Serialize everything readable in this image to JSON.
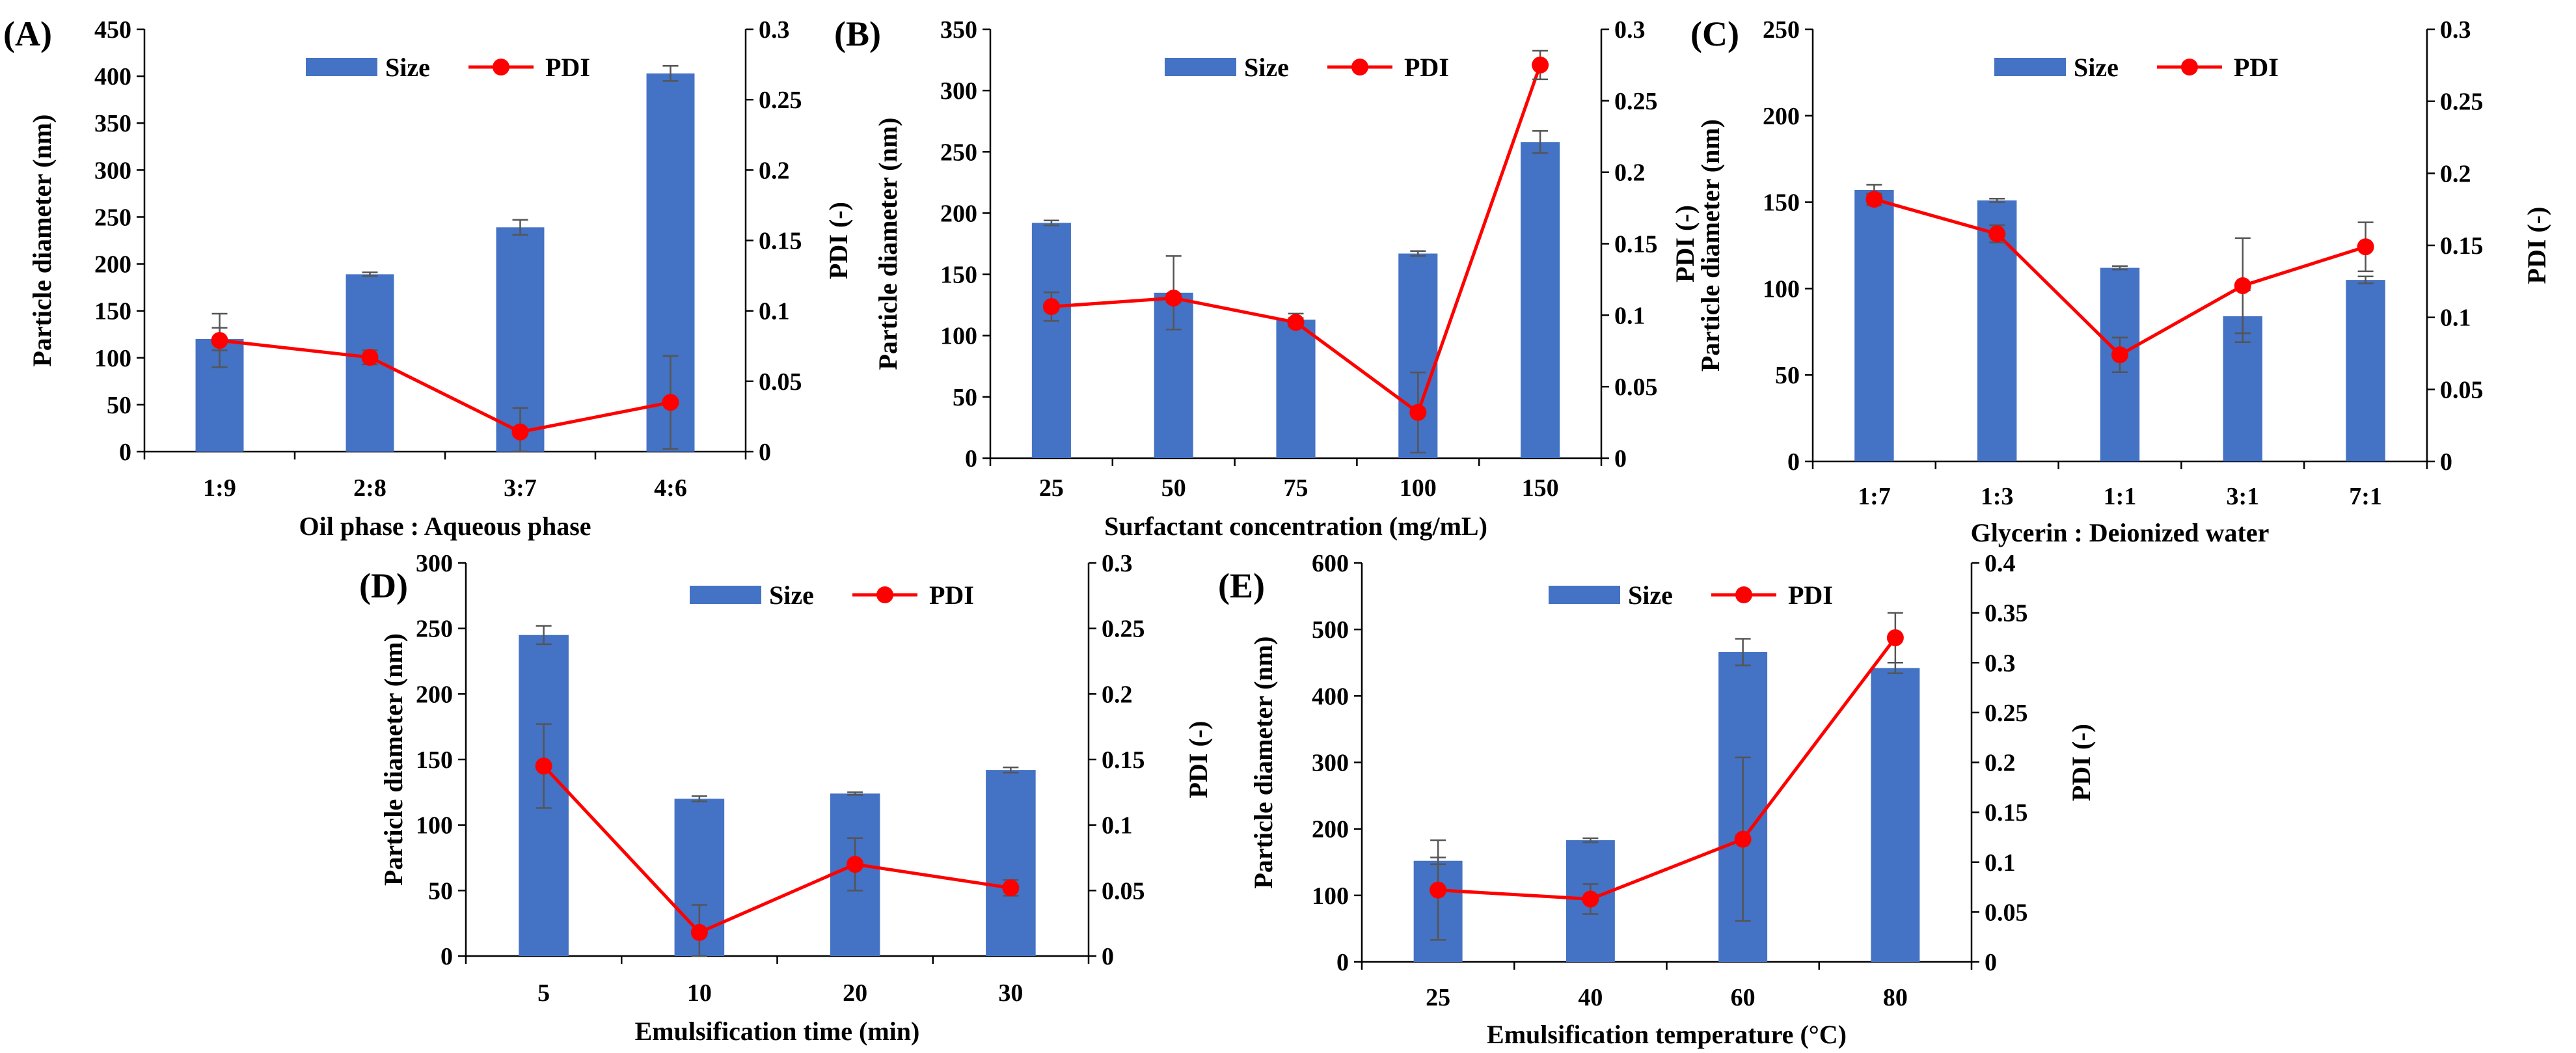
{
  "colors": {
    "bar": "#4472C4",
    "line": "#FF0000",
    "error": "#555555"
  },
  "chart_data": [
    {
      "type": "bar",
      "panel_label": "(A)",
      "xlabel": "Oil phase : Aqueous phase",
      "ylabel": "Particle diameter (nm)",
      "y2label": "PDI (-)",
      "categories": [
        "1:9",
        "2:8",
        "3:7",
        "4:6"
      ],
      "ylim": [
        0,
        450
      ],
      "ystep": 50,
      "y2lim": [
        0,
        0.3
      ],
      "y2step": 0.05,
      "legend": [
        "Size",
        "PDI"
      ],
      "series": [
        {
          "name": "Size",
          "axis": "left",
          "values": [
            120,
            189,
            239,
            403
          ],
          "errors": [
            12,
            2,
            8,
            8
          ]
        },
        {
          "name": "PDI",
          "axis": "right",
          "values": [
            0.079,
            0.067,
            0.014,
            0.035
          ],
          "errors": [
            0.019,
            0.005,
            0.017,
            0.033
          ]
        }
      ]
    },
    {
      "type": "bar",
      "panel_label": "(B)",
      "xlabel": "Surfactant concentration (mg/mL)",
      "ylabel": "Particle diameter (nm)",
      "y2label": "PDI (-)",
      "categories": [
        "25",
        "50",
        "75",
        "100",
        "150"
      ],
      "ylim": [
        0,
        350
      ],
      "ystep": 50,
      "y2lim": [
        0,
        0.3
      ],
      "y2step": 0.05,
      "legend": [
        "Size",
        "PDI"
      ],
      "series": [
        {
          "name": "Size",
          "axis": "left",
          "values": [
            192,
            135,
            113,
            167,
            258
          ],
          "errors": [
            2,
            30,
            5,
            2,
            9
          ]
        },
        {
          "name": "PDI",
          "axis": "right",
          "values": [
            0.106,
            0.112,
            0.095,
            0.032,
            0.275
          ],
          "errors": [
            0.01,
            0.003,
            0.003,
            0.028,
            0.01
          ]
        }
      ]
    },
    {
      "type": "bar",
      "panel_label": "(C)",
      "xlabel": "Glycerin : Deionized water",
      "ylabel": "Particle diameter (nm)",
      "y2label": "PDI (-)",
      "categories": [
        "1:7",
        "1:3",
        "1:1",
        "3:1",
        "7:1"
      ],
      "ylim": [
        0,
        250
      ],
      "ystep": 50,
      "y2lim": [
        0,
        0.3
      ],
      "y2step": 0.05,
      "legend": [
        "Size",
        "PDI"
      ],
      "series": [
        {
          "name": "Size",
          "axis": "left",
          "values": [
            157,
            151,
            112,
            84,
            105
          ],
          "errors": [
            3,
            1,
            1,
            15,
            2
          ]
        },
        {
          "name": "PDI",
          "axis": "right",
          "values": [
            0.182,
            0.158,
            0.074,
            0.122,
            0.149
          ],
          "errors": [
            0.004,
            0.006,
            0.012,
            0.033,
            0.017
          ]
        }
      ]
    },
    {
      "type": "bar",
      "panel_label": "(D)",
      "xlabel": "Emulsification time (min)",
      "ylabel": "Particle diameter (nm)",
      "y2label": "PDI (-)",
      "categories": [
        "5",
        "10",
        "20",
        "30"
      ],
      "ylim": [
        0,
        300
      ],
      "ystep": 50,
      "y2lim": [
        0,
        0.3
      ],
      "y2step": 0.05,
      "legend": [
        "Size",
        "PDI"
      ],
      "series": [
        {
          "name": "Size",
          "axis": "left",
          "values": [
            245,
            120,
            124,
            142
          ],
          "errors": [
            7,
            2,
            1,
            2
          ]
        },
        {
          "name": "PDI",
          "axis": "right",
          "values": [
            0.145,
            0.018,
            0.07,
            0.052
          ],
          "errors": [
            0.032,
            0.021,
            0.02,
            0.006
          ]
        }
      ]
    },
    {
      "type": "bar",
      "panel_label": "(E)",
      "xlabel": "Emulsification temperature (°C)",
      "ylabel": "Particle diameter (nm)",
      "y2label": "PDI (-)",
      "categories": [
        "25",
        "40",
        "60",
        "80"
      ],
      "ylim": [
        0,
        600
      ],
      "ystep": 100,
      "y2lim": [
        0,
        0.4
      ],
      "y2step": 0.05,
      "legend": [
        "Size",
        "PDI"
      ],
      "series": [
        {
          "name": "Size",
          "axis": "left",
          "values": [
            152,
            183,
            466,
            442
          ],
          "errors": [
            5,
            3,
            20,
            8
          ]
        },
        {
          "name": "PDI",
          "axis": "right",
          "values": [
            0.072,
            0.063,
            0.123,
            0.325
          ],
          "errors": [
            0.05,
            0.015,
            0.082,
            0.025
          ]
        }
      ]
    }
  ]
}
